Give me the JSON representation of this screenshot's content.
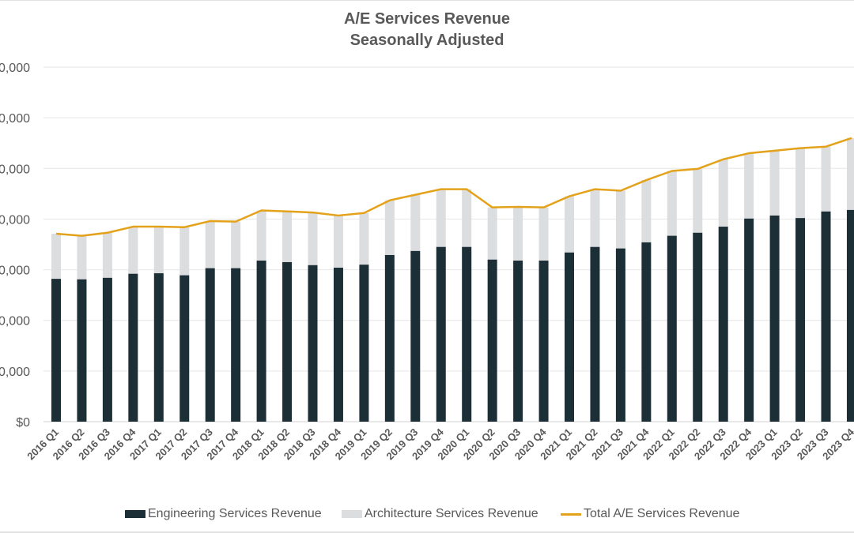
{
  "chart_data": {
    "type": "bar",
    "subtype": "stacked-bar-with-line",
    "title": "A/E Services Revenue",
    "subtitle": "Seasonally Adjusted",
    "xlabel": "",
    "ylabel": "",
    "y_unit_note": "y-axis tick labels are cropped at the left edge; values below are in gridline steps (1 step = one labeled gridline interval)",
    "yticks": [
      "$0",
      "0,000",
      "0,000",
      "0,000",
      "0,000",
      "0,000",
      "0,000",
      "0,000"
    ],
    "ylim": [
      0,
      7
    ],
    "grid": true,
    "legend_position": "bottom",
    "categories": [
      "2016 Q1",
      "2016 Q2",
      "2016 Q3",
      "2016 Q4",
      "2017 Q1",
      "2017 Q2",
      "2017 Q3",
      "2017 Q4",
      "2018 Q1",
      "2018 Q2",
      "2018 Q3",
      "2018 Q4",
      "2019 Q1",
      "2019 Q2",
      "2019 Q3",
      "2019 Q4",
      "2020 Q1",
      "2020 Q2",
      "2020 Q3",
      "2020 Q4",
      "2021 Q1",
      "2021 Q2",
      "2021 Q3",
      "2021 Q4",
      "2022 Q1",
      "2022 Q2",
      "2022 Q3",
      "2022 Q4",
      "2023 Q1",
      "2023 Q2",
      "2023 Q3",
      "2023 Q4"
    ],
    "series": [
      {
        "name": "Engineering Services Revenue",
        "type": "bar",
        "color": "#1c2e36",
        "values": [
          2.82,
          2.81,
          2.84,
          2.92,
          2.93,
          2.89,
          3.03,
          3.03,
          3.18,
          3.15,
          3.09,
          3.04,
          3.1,
          3.29,
          3.37,
          3.45,
          3.45,
          3.2,
          3.18,
          3.18,
          3.34,
          3.45,
          3.42,
          3.54,
          3.67,
          3.73,
          3.85,
          4.01,
          4.07,
          4.02,
          4.15,
          4.18
        ]
      },
      {
        "name": "Architecture Services Revenue",
        "type": "bar",
        "color": "#dcdddf",
        "values": [
          0.89,
          0.86,
          0.89,
          0.93,
          0.92,
          0.95,
          0.93,
          0.92,
          0.99,
          1.0,
          1.04,
          1.03,
          1.02,
          1.08,
          1.11,
          1.14,
          1.14,
          1.03,
          1.06,
          1.05,
          1.11,
          1.14,
          1.14,
          1.23,
          1.28,
          1.26,
          1.33,
          1.29,
          1.28,
          1.38,
          1.28,
          1.42
        ]
      },
      {
        "name": "Total A/E Services Revenue",
        "type": "line",
        "color": "#e3a21a",
        "values": [
          3.71,
          3.67,
          3.73,
          3.85,
          3.85,
          3.84,
          3.96,
          3.95,
          4.17,
          4.15,
          4.13,
          4.07,
          4.12,
          4.37,
          4.48,
          4.59,
          4.59,
          4.23,
          4.24,
          4.23,
          4.45,
          4.59,
          4.56,
          4.77,
          4.95,
          4.99,
          5.18,
          5.3,
          5.35,
          5.4,
          5.43,
          5.6
        ]
      }
    ]
  }
}
